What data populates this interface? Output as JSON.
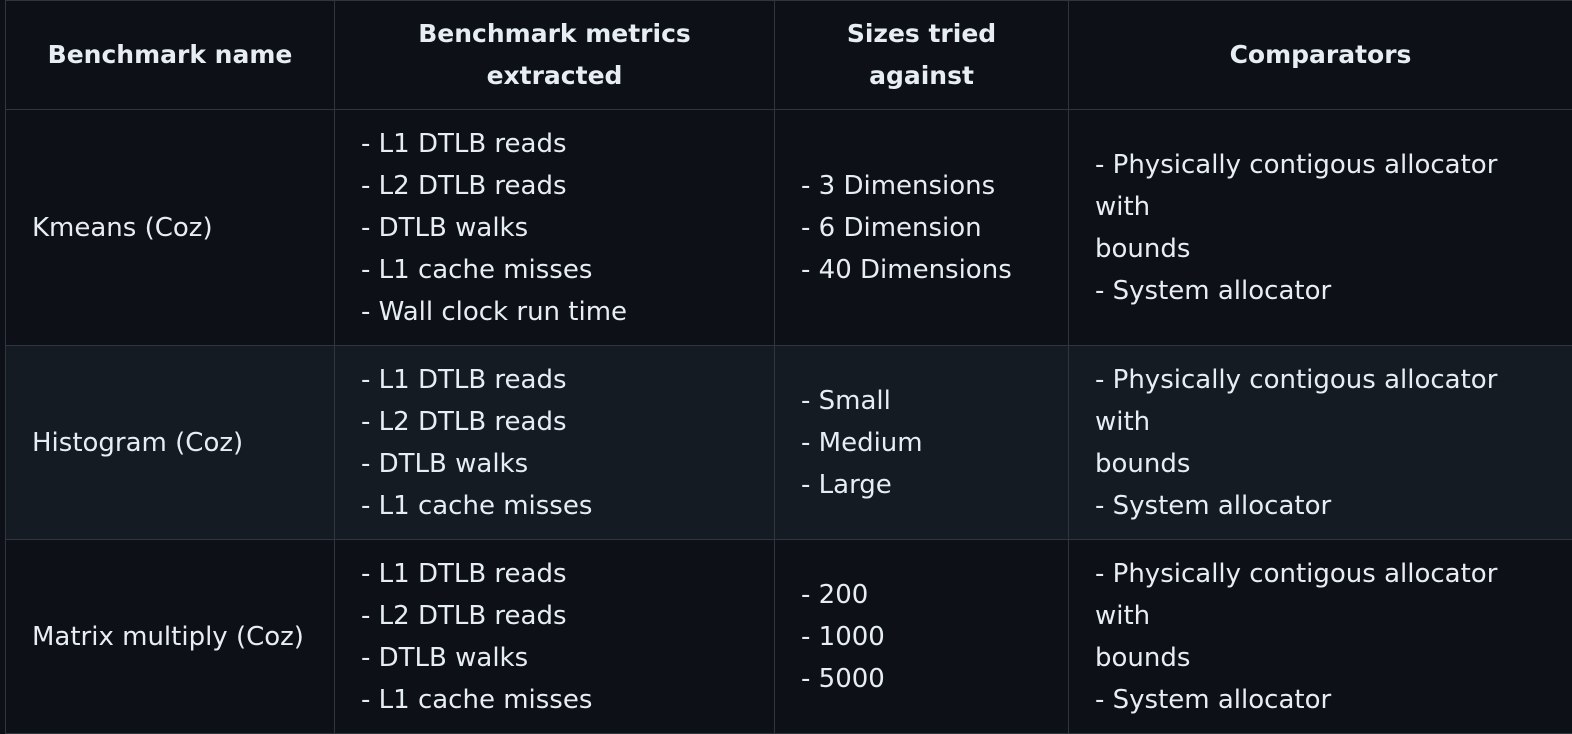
{
  "table": {
    "headers": [
      [
        "Benchmark metrics"
      ],
      [
        "Benchmark name"
      ],
      [
        "Sizes tried",
        "against"
      ],
      [
        "Comparators"
      ]
    ],
    "header_labels": {
      "name": "Benchmark name",
      "metrics_line1": "Benchmark metrics",
      "metrics_line2": "extracted",
      "sizes_line1": "Sizes tried",
      "sizes_line2": "against",
      "comparators": "Comparators"
    },
    "rows": [
      {
        "name": "Kmeans (Coz)",
        "metrics": [
          "- L1 DTLB reads",
          "- L2 DTLB reads",
          "- DTLB walks",
          "- L1 cache misses",
          "- Wall clock run time"
        ],
        "sizes": [
          "- 3 Dimensions",
          "- 6 Dimension",
          "- 40 Dimensions"
        ],
        "comparators": [
          "- Physically contigous allocator",
          "with",
          "bounds",
          "- System allocator"
        ]
      },
      {
        "name": "Histogram (Coz)",
        "metrics": [
          "- L1 DTLB reads",
          "- L2 DTLB reads",
          "- DTLB walks",
          "- L1 cache misses"
        ],
        "sizes": [
          "- Small",
          "- Medium",
          "- Large"
        ],
        "comparators": [
          "- Physically contigous allocator",
          "with",
          "bounds",
          "- System allocator"
        ]
      },
      {
        "name": "Matrix multiply (Coz)",
        "metrics": [
          "- L1 DTLB reads",
          "- L2 DTLB reads",
          "- DTLB walks",
          "- L1 cache misses"
        ],
        "sizes": [
          "- 200",
          "- 1000",
          "- 5000"
        ],
        "comparators": [
          "- Physically contigous allocator",
          "with",
          "bounds",
          "- System allocator"
        ]
      }
    ]
  },
  "colors": {
    "background": "#0d1117",
    "alt_row": "#151b23",
    "border": "#30363d",
    "text": "#e6edf3"
  }
}
